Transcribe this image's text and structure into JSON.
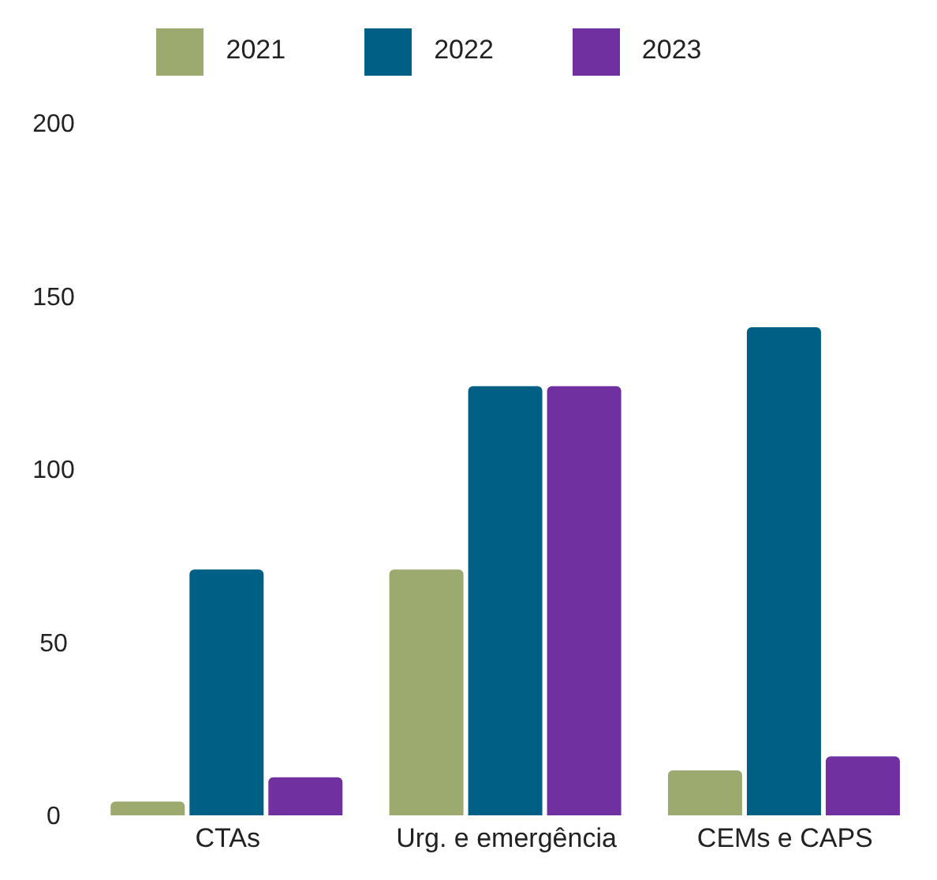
{
  "chart_data": {
    "type": "bar",
    "categories": [
      "CTAs",
      "Urg. e emergência",
      "CEMs e CAPS"
    ],
    "series": [
      {
        "name": "2021",
        "color": "#9caa6f",
        "values": [
          4,
          71,
          13
        ]
      },
      {
        "name": "2022",
        "color": "#005f85",
        "values": [
          71,
          124,
          141
        ]
      },
      {
        "name": "2023",
        "color": "#7030a0",
        "values": [
          11,
          124,
          17
        ]
      }
    ],
    "ylim": [
      0,
      200
    ],
    "yticks": [
      0,
      50,
      100,
      150,
      200
    ],
    "grid": false,
    "legend": "top"
  }
}
